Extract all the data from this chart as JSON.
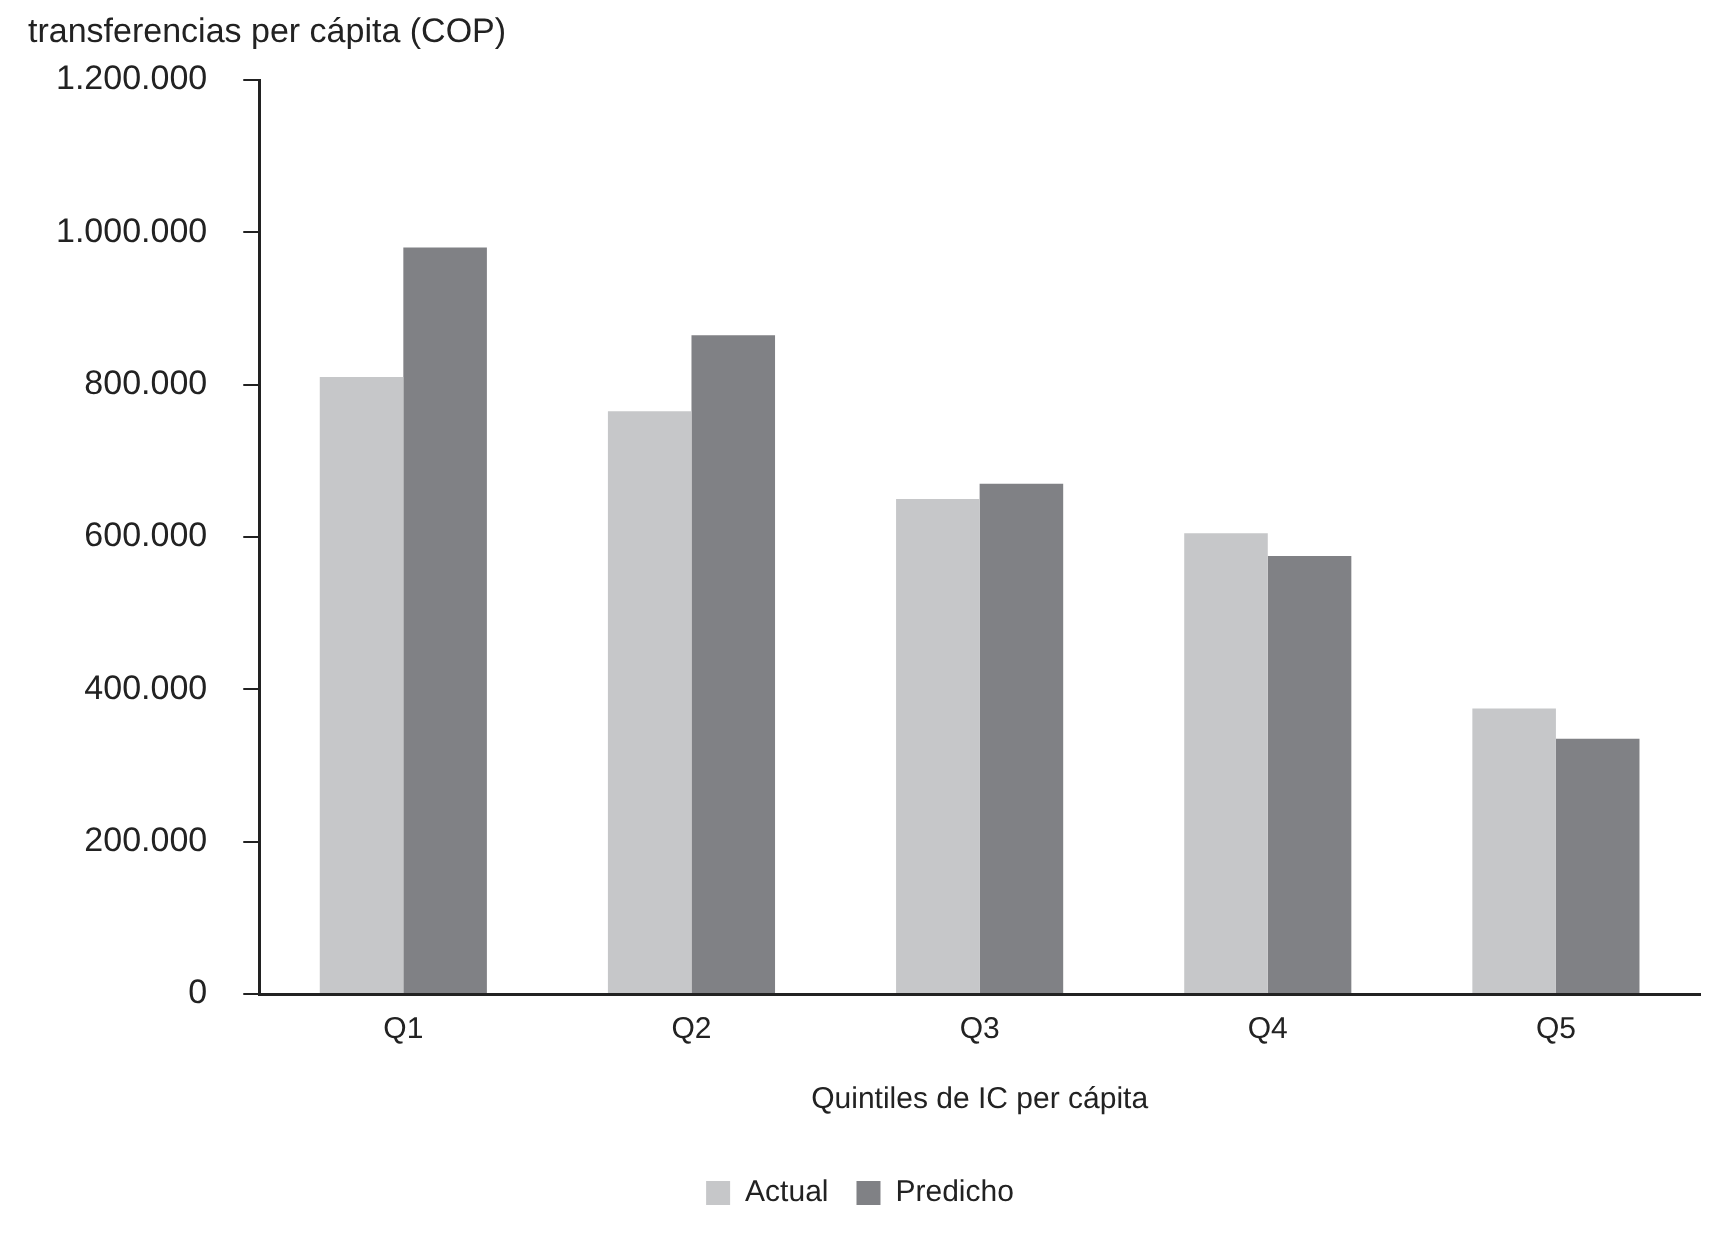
{
  "chart_data": {
    "type": "bar",
    "ylabel": "transferencias per cápita (COP)",
    "xlabel": "Quintiles de IC per cápita",
    "categories": [
      "Q1",
      "Q2",
      "Q3",
      "Q4",
      "Q5"
    ],
    "series": [
      {
        "name": "Actual",
        "color": "#c6c7c9",
        "values": [
          810000,
          765000,
          650000,
          605000,
          375000
        ]
      },
      {
        "name": "Predicho",
        "color": "#808185",
        "values": [
          980000,
          865000,
          670000,
          575000,
          335000
        ]
      }
    ],
    "ylim": [
      0,
      1200000
    ],
    "yticks": [
      0,
      {
        "value": 200000,
        "label": "200.000"
      },
      {
        "value": 400000,
        "label": "400.000"
      },
      {
        "value": 600000,
        "label": "600.000"
      },
      {
        "value": 800000,
        "label": "800.000"
      },
      {
        "value": 1000000,
        "label": "1.000.000"
      },
      {
        "value": 1200000,
        "label": "1.200.000"
      }
    ],
    "grid": false,
    "legend": "bottom"
  }
}
